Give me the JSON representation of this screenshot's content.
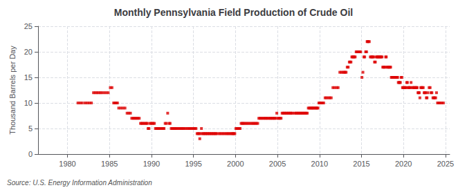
{
  "chart_data": {
    "type": "scatter",
    "title": "Monthly Pennsylvania Field Production of Crude Oil",
    "ylabel": "Thousand Barrels per Day",
    "annotations": [
      "Source: U.S. Energy Information Administration"
    ],
    "color": "#dd0000",
    "marker": "square",
    "grid": true,
    "xlim": [
      1976.5,
      2025.5
    ],
    "xticks": [
      1980,
      1985,
      1990,
      1995,
      2000,
      2005,
      2010,
      2015,
      2020,
      2025
    ],
    "ylim": [
      0,
      25
    ],
    "yticks": [
      0,
      5,
      10,
      15,
      20,
      25
    ],
    "x": [
      1981.25,
      1981.5,
      1981.75,
      1982.1,
      1982.35,
      1982.6,
      1982.85,
      1983.1,
      1983.3,
      1983.5,
      1983.7,
      1983.9,
      1984.1,
      1984.35,
      1984.6,
      1984.85,
      1985.1,
      1985.3,
      1985.5,
      1985.65,
      1985.8,
      1985.95,
      1986.1,
      1986.35,
      1986.6,
      1986.85,
      1987.1,
      1987.3,
      1987.5,
      1987.65,
      1987.8,
      1987.95,
      1988.1,
      1988.25,
      1988.4,
      1988.55,
      1988.7,
      1988.82,
      1988.95,
      1989.1,
      1989.25,
      1989.4,
      1989.5,
      1989.6,
      1989.7,
      1989.83,
      1989.95,
      1990.1,
      1990.22,
      1990.35,
      1990.47,
      1990.6,
      1990.72,
      1990.83,
      1990.95,
      1991.1,
      1991.25,
      1991.4,
      1991.5,
      1991.63,
      1991.78,
      1991.93,
      1992.1,
      1992.22,
      1992.35,
      1992.47,
      1992.6,
      1992.72,
      1992.83,
      1992.95,
      1993.1,
      1993.25,
      1993.4,
      1993.55,
      1993.65,
      1993.78,
      1993.92,
      1994.1,
      1994.28,
      1994.45,
      1994.6,
      1994.75,
      1994.9,
      1995.05,
      1995.18,
      1995.3,
      1995.43,
      1995.55,
      1995.67,
      1995.75,
      1995.83,
      1995.95,
      1996.05,
      1996.18,
      1996.3,
      1996.43,
      1996.55,
      1996.67,
      1996.8,
      1996.92,
      1997.05,
      1997.18,
      1997.3,
      1997.43,
      1997.55,
      1997.67,
      1997.8,
      1998.05,
      1998.2,
      1998.38,
      1998.55,
      1998.72,
      1998.9,
      1999.05,
      1999.2,
      1999.35,
      1999.5,
      1999.62,
      1999.72,
      1999.82,
      1999.92,
      2000.05,
      2000.18,
      2000.3,
      2000.43,
      2000.55,
      2000.67,
      2000.8,
      2000.92,
      2001.05,
      2001.22,
      2001.38,
      2001.55,
      2001.72,
      2001.9,
      2002.05,
      2002.2,
      2002.35,
      2002.5,
      2002.65,
      2002.78,
      2002.92,
      2003.05,
      2003.2,
      2003.35,
      2003.5,
      2003.62,
      2003.75,
      2003.9,
      2004.05,
      2004.18,
      2004.3,
      2004.43,
      2004.55,
      2004.67,
      2004.8,
      2004.92,
      2005.05,
      2005.18,
      2005.3,
      2005.43,
      2005.55,
      2005.67,
      2005.8,
      2005.92,
      2006.05,
      2006.18,
      2006.3,
      2006.43,
      2006.55,
      2006.67,
      2006.8,
      2007.05,
      2007.18,
      2007.3,
      2007.43,
      2007.55,
      2007.67,
      2007.8,
      2007.92,
      2008.05,
      2008.18,
      2008.3,
      2008.43,
      2008.55,
      2008.67,
      2008.8,
      2008.92,
      2009.05,
      2009.15,
      2009.25,
      2009.38,
      2009.5,
      2009.62,
      2009.72,
      2009.82,
      2009.93,
      2010.05,
      2010.2,
      2010.35,
      2010.5,
      2010.67,
      2010.83,
      2011.05,
      2011.22,
      2011.4,
      2011.6,
      2011.8,
      2012.05,
      2012.22,
      2012.42,
      2012.6,
      2012.78,
      2012.93,
      2013.05,
      2013.17,
      2013.3,
      2013.42,
      2013.55,
      2013.65,
      2013.75,
      2013.85,
      2013.93,
      2014.05,
      2014.15,
      2014.25,
      2014.37,
      2014.47,
      2014.57,
      2014.67,
      2014.78,
      2014.9,
      2015.05,
      2015.17,
      2015.28,
      2015.38,
      2015.5,
      2015.6,
      2015.67,
      2015.73,
      2015.83,
      2015.93,
      2016.05,
      2016.15,
      2016.25,
      2016.35,
      2016.45,
      2016.55,
      2016.65,
      2016.75,
      2016.85,
      2016.95,
      2017.05,
      2017.15,
      2017.25,
      2017.35,
      2017.45,
      2017.53,
      2017.62,
      2017.72,
      2017.82,
      2017.88,
      2017.95,
      2018.05,
      2018.13,
      2018.22,
      2018.3,
      2018.38,
      2018.47,
      2018.55,
      2018.63,
      2018.72,
      2018.8,
      2018.88,
      2018.95,
      2019.05,
      2019.13,
      2019.22,
      2019.3,
      2019.38,
      2019.47,
      2019.55,
      2019.63,
      2019.72,
      2019.8,
      2019.88,
      2019.95,
      2020.05,
      2020.13,
      2020.22,
      2020.3,
      2020.38,
      2020.47,
      2020.55,
      2020.63,
      2020.72,
      2020.8,
      2020.9,
      2021.05,
      2021.15,
      2021.25,
      2021.35,
      2021.45,
      2021.55,
      2021.63,
      2021.72,
      2021.8,
      2021.88,
      2021.95,
      2022.05,
      2022.15,
      2022.25,
      2022.35,
      2022.45,
      2022.55,
      2022.63,
      2022.72,
      2022.8,
      2022.9,
      2023.05,
      2023.17,
      2023.28,
      2023.38,
      2023.5,
      2023.6,
      2023.72,
      2023.83,
      2023.93,
      2024.05,
      2024.2,
      2024.37,
      2024.55,
      2024.75
    ],
    "values": [
      10.0,
      10.0,
      10.0,
      10.0,
      10.0,
      10.0,
      10.0,
      12.0,
      12.0,
      12.0,
      12.0,
      12.0,
      12.0,
      12.0,
      12.0,
      12.0,
      13.0,
      13.0,
      10.0,
      10.0,
      10.0,
      10.0,
      9.0,
      9.0,
      9.0,
      9.0,
      8.0,
      8.0,
      8.0,
      7.0,
      7.0,
      7.0,
      7.0,
      7.0,
      7.0,
      7.0,
      6.0,
      6.0,
      6.0,
      6.0,
      6.0,
      6.0,
      6.0,
      5.0,
      5.0,
      6.0,
      6.0,
      6.0,
      6.0,
      6.0,
      5.0,
      5.0,
      5.0,
      5.0,
      5.0,
      5.0,
      5.0,
      5.0,
      5.0,
      6.0,
      6.0,
      8.0,
      6.0,
      6.0,
      5.0,
      5.0,
      5.0,
      5.0,
      5.0,
      5.0,
      5.0,
      5.0,
      5.0,
      5.0,
      5.0,
      5.0,
      5.0,
      5.0,
      5.0,
      5.0,
      5.0,
      5.0,
      5.0,
      5.0,
      5.0,
      5.0,
      4.0,
      4.0,
      4.0,
      3.0,
      4.0,
      5.0,
      4.0,
      4.0,
      4.0,
      4.0,
      4.0,
      4.0,
      4.0,
      4.0,
      4.0,
      4.0,
      4.0,
      4.0,
      4.0,
      4.0,
      4.0,
      4.0,
      4.0,
      4.0,
      4.0,
      4.0,
      4.0,
      4.0,
      4.0,
      4.0,
      4.0,
      4.0,
      4.0,
      4.0,
      4.0,
      5.0,
      5.0,
      5.0,
      5.0,
      5.0,
      6.0,
      6.0,
      6.0,
      6.0,
      6.0,
      6.0,
      6.0,
      6.0,
      6.0,
      6.0,
      6.0,
      6.0,
      6.0,
      6.0,
      7.0,
      7.0,
      7.0,
      7.0,
      7.0,
      7.0,
      7.0,
      7.0,
      7.0,
      7.0,
      7.0,
      7.0,
      7.0,
      7.0,
      7.0,
      7.0,
      8.0,
      7.0,
      7.0,
      7.0,
      7.0,
      8.0,
      8.0,
      8.0,
      8.0,
      8.0,
      8.0,
      8.0,
      8.0,
      8.0,
      8.0,
      8.0,
      8.0,
      8.0,
      8.0,
      8.0,
      8.0,
      8.0,
      8.0,
      8.0,
      8.0,
      8.0,
      8.0,
      8.0,
      8.0,
      9.0,
      9.0,
      9.0,
      9.0,
      9.0,
      9.0,
      9.0,
      9.0,
      9.0,
      9.0,
      9.0,
      10.0,
      10.0,
      10.0,
      10.0,
      10.0,
      11.0,
      11.0,
      11.0,
      11.0,
      11.0,
      13.0,
      13.0,
      13.0,
      13.0,
      16.0,
      16.0,
      16.0,
      16.0,
      16.0,
      16.0,
      17.0,
      17.0,
      18.0,
      18.0,
      18.0,
      19.0,
      19.0,
      19.0,
      19.0,
      19.0,
      20.0,
      20.0,
      20.0,
      20.0,
      20.0,
      20.0,
      15.0,
      16.0,
      19.0,
      19.0,
      20.0,
      20.0,
      22.0,
      22.0,
      22.0,
      22.0,
      19.0,
      19.0,
      19.0,
      19.0,
      19.0,
      18.0,
      18.0,
      19.0,
      19.0,
      19.0,
      19.0,
      19.0,
      19.0,
      19.0,
      19.0,
      17.0,
      17.0,
      17.0,
      17.0,
      19.0,
      19.0,
      17.0,
      17.0,
      17.0,
      17.0,
      17.0,
      17.0,
      15.0,
      15.0,
      15.0,
      15.0,
      15.0,
      15.0,
      15.0,
      15.0,
      15.0,
      15.0,
      14.0,
      14.0,
      14.0,
      14.0,
      15.0,
      15.0,
      13.0,
      13.0,
      13.0,
      13.0,
      13.0,
      13.0,
      14.0,
      14.0,
      13.0,
      13.0,
      13.0,
      13.0,
      14.0,
      13.0,
      13.0,
      13.0,
      13.0,
      13.0,
      13.0,
      13.0,
      12.0,
      12.0,
      12.0,
      11.0,
      13.0,
      13.0,
      13.0,
      13.0,
      12.0,
      12.0,
      12.0,
      11.0,
      11.0,
      12.0,
      13.0,
      13.0,
      12.0,
      12.0,
      11.0,
      11.0,
      11.0,
      11.0,
      12.0,
      10.0,
      10.0,
      10.0,
      10.0,
      10.0
    ]
  }
}
